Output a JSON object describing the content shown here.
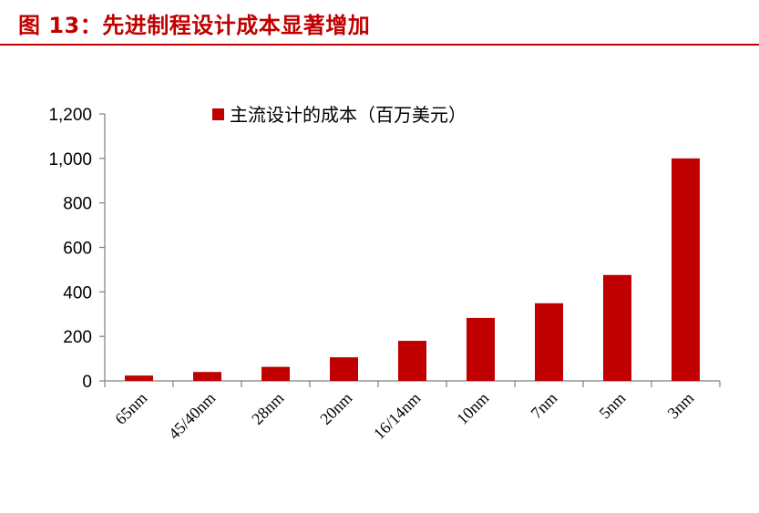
{
  "header": {
    "title": "图 13：先进制程设计成本显著增加",
    "accent_color": "#c00000"
  },
  "chart_data": {
    "type": "bar",
    "title": "",
    "xlabel": "",
    "ylabel": "",
    "categories": [
      "65nm",
      "45/40nm",
      "28nm",
      "20nm",
      "16/14nm",
      "10nm",
      "7nm",
      "5nm",
      "3nm"
    ],
    "series": [
      {
        "name": "主流设计的成本（百万美元）",
        "color": "#c00000",
        "values": [
          24,
          40,
          63,
          106,
          180,
          283,
          349,
          476,
          1000
        ]
      }
    ],
    "ylim": [
      0,
      1200
    ],
    "yticks": [
      0,
      200,
      400,
      600,
      800,
      1000,
      1200
    ],
    "ytick_labels": [
      "0",
      "200",
      "400",
      "600",
      "800",
      "1,000",
      "1,200"
    ],
    "grid": false,
    "legend_position": "top-center"
  }
}
